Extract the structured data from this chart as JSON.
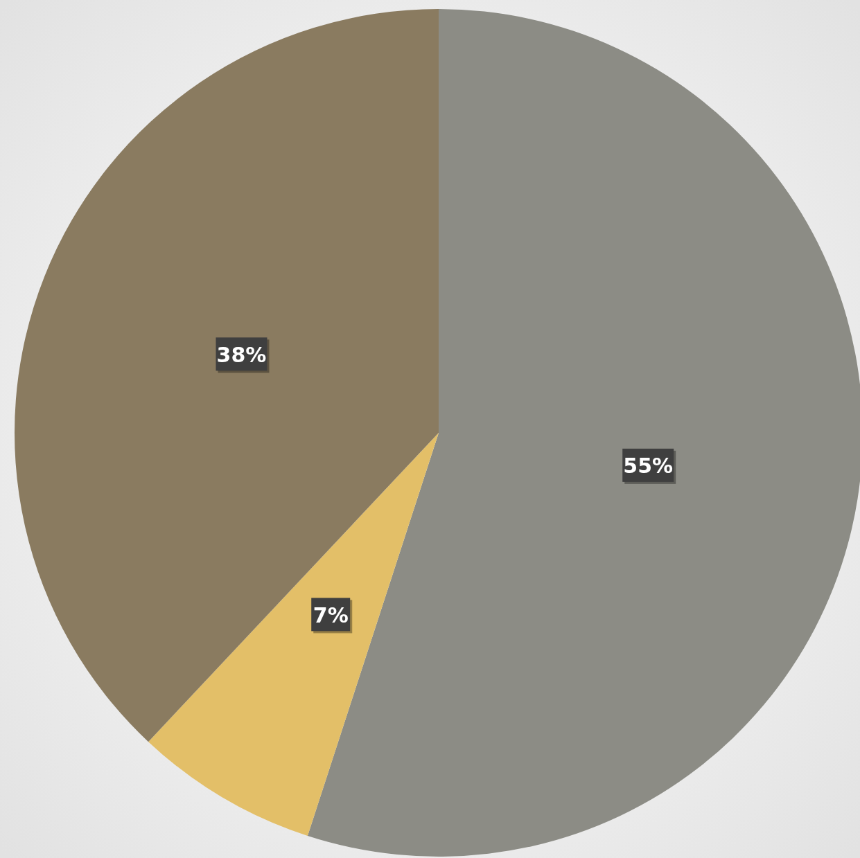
{
  "chart_data": {
    "type": "pie",
    "categories": [
      null,
      null,
      null
    ],
    "values": [
      55,
      7,
      38
    ],
    "colors": [
      "#8c8c85",
      "#e3bf68",
      "#8a7b60"
    ],
    "value_labels": [
      "55%",
      "7%",
      "38%"
    ]
  }
}
